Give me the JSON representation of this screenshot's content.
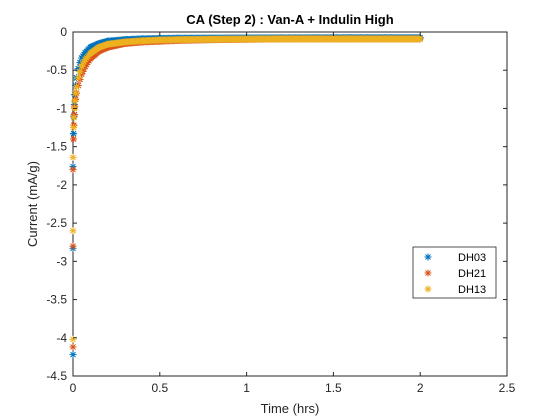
{
  "chart_data": {
    "type": "scatter",
    "title": "CA (Step 2) : Van-A + Indulin High",
    "xlabel": "Time (hrs)",
    "ylabel": "Current (mA/g)",
    "xlim": [
      0,
      2.5
    ],
    "ylim": [
      -4.5,
      0
    ],
    "xticks": [
      0,
      0.5,
      1,
      1.5,
      2,
      2.5
    ],
    "xtick_labels": [
      "0",
      "0.5",
      "1",
      "1.5",
      "2",
      "2.5"
    ],
    "yticks": [
      0,
      -0.5,
      -1,
      -1.5,
      -2,
      -2.5,
      -3,
      -3.5,
      -4,
      -4.5
    ],
    "ytick_labels": [
      "0",
      "-0.5",
      "-1",
      "-1.5",
      "-2",
      "-2.5",
      "-3",
      "-3.5",
      "-4",
      "-4.5"
    ],
    "grid": false,
    "legend_position": "right",
    "marker": "asterisk",
    "series": [
      {
        "name": "DH03",
        "color": "#0072BD",
        "x": [
          0.0,
          0.0,
          0.0,
          0.003,
          0.005,
          0.008,
          0.01,
          0.015,
          0.02,
          0.03,
          0.04,
          0.05,
          0.07,
          0.1,
          0.15,
          0.2,
          0.3,
          0.4,
          0.5,
          0.6,
          0.8,
          1.0,
          1.2,
          1.4,
          1.6,
          1.8,
          2.0
        ],
        "y": [
          -4.22,
          -2.83,
          -1.76,
          -1.33,
          -1.1,
          -0.95,
          -0.82,
          -0.7,
          -0.6,
          -0.48,
          -0.4,
          -0.34,
          -0.27,
          -0.2,
          -0.15,
          -0.12,
          -0.1,
          -0.09,
          -0.085,
          -0.082,
          -0.08,
          -0.078,
          -0.077,
          -0.076,
          -0.075,
          -0.075,
          -0.075
        ]
      },
      {
        "name": "DH21",
        "color": "#D95319",
        "x": [
          0.0,
          0.0,
          0.0,
          0.003,
          0.005,
          0.008,
          0.01,
          0.015,
          0.02,
          0.03,
          0.04,
          0.05,
          0.07,
          0.1,
          0.15,
          0.2,
          0.3,
          0.4,
          0.5,
          0.6,
          0.8,
          1.0,
          1.2,
          1.4,
          1.6,
          1.8,
          2.0
        ],
        "y": [
          -4.12,
          -2.8,
          -1.8,
          -1.4,
          -1.22,
          -1.08,
          -0.98,
          -0.88,
          -0.8,
          -0.7,
          -0.62,
          -0.55,
          -0.45,
          -0.35,
          -0.25,
          -0.2,
          -0.15,
          -0.13,
          -0.12,
          -0.11,
          -0.1,
          -0.095,
          -0.09,
          -0.09,
          -0.09,
          -0.09,
          -0.09
        ]
      },
      {
        "name": "DH13",
        "color": "#EDB120",
        "x": [
          0.0,
          0.0,
          0.0,
          0.003,
          0.005,
          0.008,
          0.01,
          0.015,
          0.02,
          0.03,
          0.04,
          0.05,
          0.07,
          0.1,
          0.15,
          0.2,
          0.3,
          0.4,
          0.5,
          0.6,
          0.8,
          1.0,
          1.2,
          1.4,
          1.6,
          1.8,
          2.0
        ],
        "y": [
          -4.02,
          -2.6,
          -1.64,
          -1.25,
          -1.12,
          -1.0,
          -0.9,
          -0.8,
          -0.72,
          -0.6,
          -0.52,
          -0.45,
          -0.36,
          -0.28,
          -0.2,
          -0.16,
          -0.13,
          -0.115,
          -0.105,
          -0.1,
          -0.095,
          -0.092,
          -0.09,
          -0.09,
          -0.09,
          -0.09,
          -0.09
        ]
      }
    ]
  }
}
